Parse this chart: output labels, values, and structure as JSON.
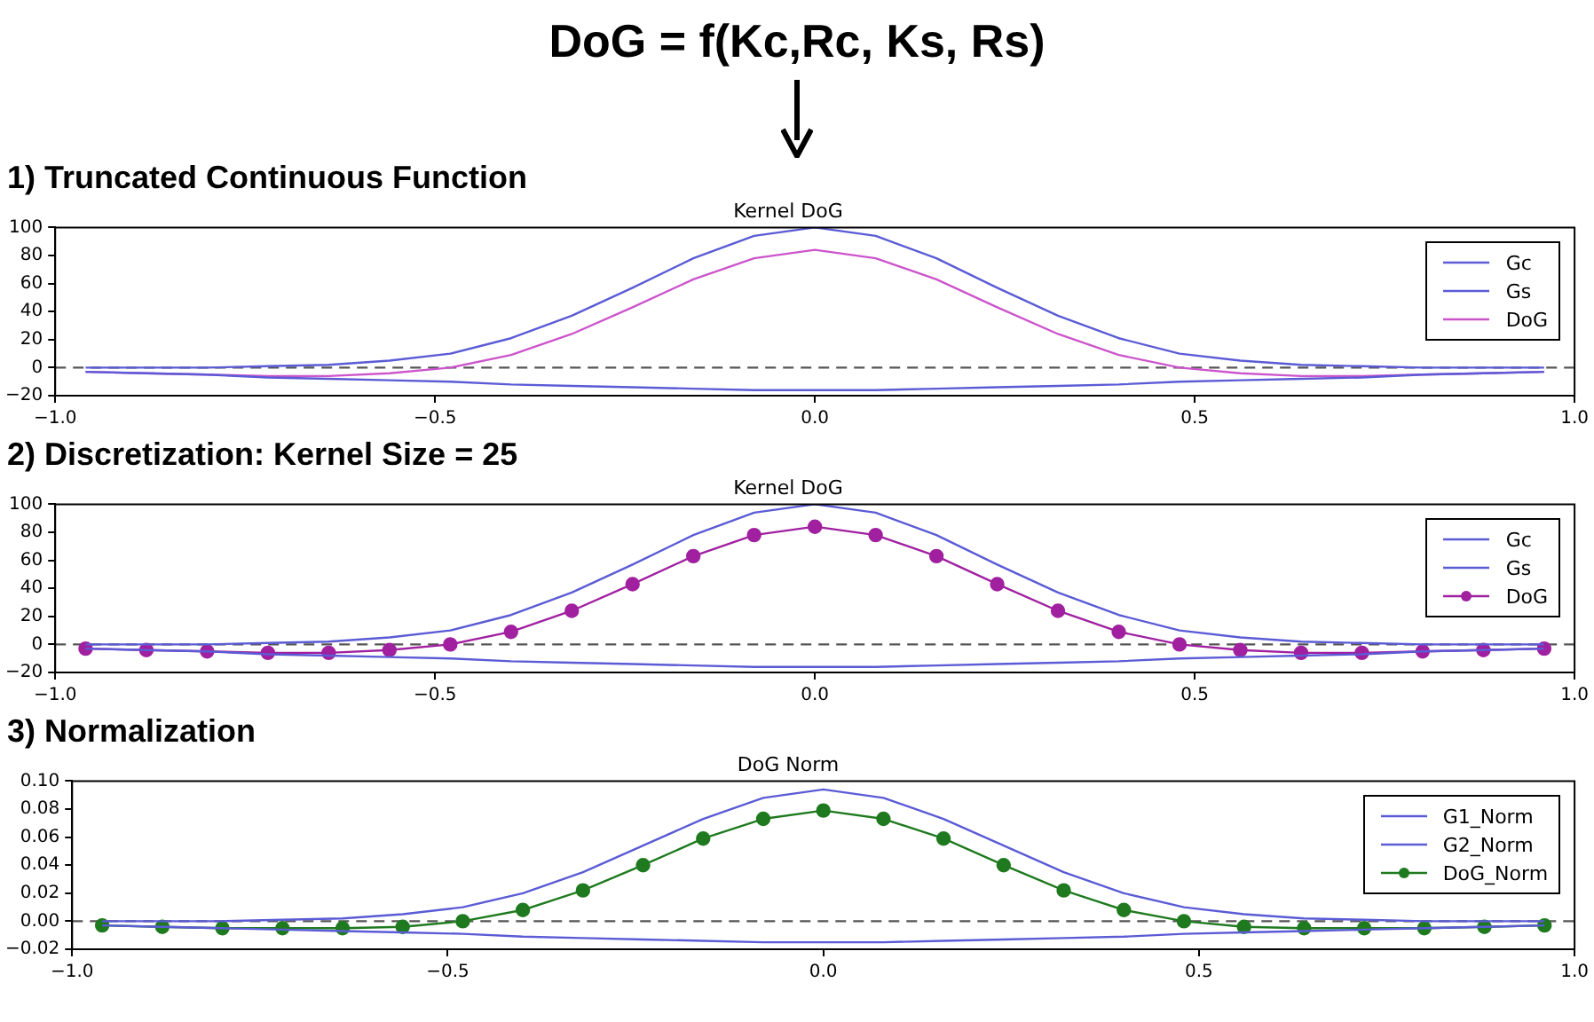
{
  "chart_data": [
    {
      "type": "line",
      "title": "1) Truncated Continuous Function",
      "subtitle": "Kernel DoG",
      "annotations": [
        "DoG = f(Kc,Rc, Ks, Rs)"
      ],
      "x": [
        -0.96,
        -0.88,
        -0.8,
        -0.72,
        -0.64,
        -0.56,
        -0.48,
        -0.4,
        -0.32,
        -0.24,
        -0.16,
        -0.08,
        0,
        0.08,
        0.16,
        0.24,
        0.32,
        0.4,
        0.48,
        0.56,
        0.64,
        0.72,
        0.8,
        0.88,
        0.96
      ],
      "xlim": [
        -1,
        1
      ],
      "xticks": [
        {
          "value": -1,
          "label": "−1.0"
        },
        {
          "value": -0.5,
          "label": "−0.5"
        },
        {
          "value": 0,
          "label": "0.0"
        },
        {
          "value": 0.5,
          "label": "0.5"
        },
        {
          "value": 1,
          "label": "1.0"
        }
      ],
      "ylim": [
        -20,
        100
      ],
      "yticks": [
        {
          "value": -20,
          "label": "−20"
        },
        0,
        20,
        40,
        60,
        80,
        100
      ],
      "legend": "top right",
      "grid": false,
      "marker": "none",
      "ref_lines": [
        {
          "axis": "y",
          "value": 0,
          "color": "#555555",
          "line_style": "dashed"
        }
      ],
      "series": [
        {
          "name": "Gc",
          "color": "#5b5bd6",
          "values": [
            0,
            0,
            0,
            1,
            2,
            5,
            10,
            21,
            37,
            57,
            78,
            94,
            100,
            94,
            78,
            57,
            37,
            21,
            10,
            5,
            2,
            1,
            0,
            0,
            0
          ]
        },
        {
          "name": "Gs",
          "color": "#5b5bd6",
          "values": [
            -3,
            -4,
            -5,
            -7,
            -8,
            -9,
            -10,
            -12,
            -13,
            -14,
            -15,
            -16,
            -16,
            -16,
            -15,
            -14,
            -13,
            -12,
            -10,
            -9,
            -8,
            -7,
            -5,
            -4,
            -3
          ]
        },
        {
          "name": "DoG",
          "color": "#cc55cc",
          "values": [
            -3,
            -4,
            -5,
            -6,
            -6,
            -4,
            0,
            9,
            24,
            43,
            63,
            78,
            84,
            78,
            63,
            43,
            24,
            9,
            0,
            -4,
            -6,
            -6,
            -5,
            -4,
            -3
          ]
        }
      ]
    },
    {
      "type": "line",
      "title": "2) Discretization: Kernel Size = 25",
      "subtitle": "Kernel DoG",
      "x": [
        -0.96,
        -0.88,
        -0.8,
        -0.72,
        -0.64,
        -0.56,
        -0.48,
        -0.4,
        -0.32,
        -0.24,
        -0.16,
        -0.08,
        0,
        0.08,
        0.16,
        0.24,
        0.32,
        0.4,
        0.48,
        0.56,
        0.64,
        0.72,
        0.8,
        0.88,
        0.96
      ],
      "xlim": [
        -1,
        1
      ],
      "xticks": [
        {
          "value": -1,
          "label": "−1.0"
        },
        {
          "value": -0.5,
          "label": "−0.5"
        },
        {
          "value": 0,
          "label": "0.0"
        },
        {
          "value": 0.5,
          "label": "0.5"
        },
        {
          "value": 1,
          "label": "1.0"
        }
      ],
      "ylim": [
        -20,
        100
      ],
      "yticks": [
        {
          "value": -20,
          "label": "−20"
        },
        0,
        20,
        40,
        60,
        80,
        100
      ],
      "legend": "top right",
      "grid": false,
      "ref_lines": [
        {
          "axis": "y",
          "value": 0,
          "color": "#555555",
          "line_style": "dashed"
        }
      ],
      "series": [
        {
          "name": "Gc",
          "color": "#5b5bd6",
          "values": [
            0,
            0,
            0,
            1,
            2,
            5,
            10,
            21,
            37,
            57,
            78,
            94,
            100,
            94,
            78,
            57,
            37,
            21,
            10,
            5,
            2,
            1,
            0,
            0,
            0
          ]
        },
        {
          "name": "Gs",
          "color": "#5b5bd6",
          "values": [
            -3,
            -4,
            -5,
            -7,
            -8,
            -9,
            -10,
            -12,
            -13,
            -14,
            -15,
            -16,
            -16,
            -16,
            -15,
            -14,
            -13,
            -12,
            -10,
            -9,
            -8,
            -7,
            -5,
            -4,
            -3
          ]
        },
        {
          "name": "DoG",
          "color": "#a020a0",
          "marker": "circle",
          "values": [
            -3,
            -4,
            -5,
            -6,
            -6,
            -4,
            0,
            9,
            24,
            43,
            63,
            78,
            84,
            78,
            63,
            43,
            24,
            9,
            0,
            -4,
            -6,
            -6,
            -5,
            -4,
            -3
          ]
        }
      ]
    },
    {
      "type": "line",
      "title": "3) Normalization",
      "subtitle": "DoG Norm",
      "x": [
        -0.96,
        -0.88,
        -0.8,
        -0.72,
        -0.64,
        -0.56,
        -0.48,
        -0.4,
        -0.32,
        -0.24,
        -0.16,
        -0.08,
        0,
        0.08,
        0.16,
        0.24,
        0.32,
        0.4,
        0.48,
        0.56,
        0.64,
        0.72,
        0.8,
        0.88,
        0.96
      ],
      "xlim": [
        -1,
        1
      ],
      "xticks": [
        {
          "value": -1,
          "label": "−1.0"
        },
        {
          "value": -0.5,
          "label": "−0.5"
        },
        {
          "value": 0,
          "label": "0.0"
        },
        {
          "value": 0.5,
          "label": "0.5"
        },
        {
          "value": 1,
          "label": "1.0"
        }
      ],
      "ylim": [
        -0.02,
        0.1
      ],
      "yticks": [
        {
          "value": -0.02,
          "label": "−0.02"
        },
        {
          "value": 0,
          "label": "0.00"
        },
        {
          "value": 0.02,
          "label": "0.02"
        },
        {
          "value": 0.04,
          "label": "0.04"
        },
        {
          "value": 0.06,
          "label": "0.06"
        },
        {
          "value": 0.08,
          "label": "0.08"
        },
        {
          "value": 0.1,
          "label": "0.10"
        }
      ],
      "legend": "top right",
      "grid": false,
      "ref_lines": [
        {
          "axis": "y",
          "value": 0,
          "color": "#555555",
          "line_style": "dashed"
        }
      ],
      "series": [
        {
          "name": "G1_Norm",
          "color": "#5b5bd6",
          "values": [
            0,
            0,
            0,
            0.001,
            0.002,
            0.005,
            0.01,
            0.02,
            0.035,
            0.054,
            0.073,
            0.088,
            0.094,
            0.088,
            0.073,
            0.054,
            0.035,
            0.02,
            0.01,
            0.005,
            0.002,
            0.001,
            0,
            0,
            0
          ]
        },
        {
          "name": "G2_Norm",
          "color": "#5b5bd6",
          "values": [
            -0.003,
            -0.004,
            -0.005,
            -0.006,
            -0.007,
            -0.008,
            -0.009,
            -0.011,
            -0.012,
            -0.013,
            -0.014,
            -0.015,
            -0.015,
            -0.015,
            -0.014,
            -0.013,
            -0.012,
            -0.011,
            -0.009,
            -0.008,
            -0.007,
            -0.006,
            -0.005,
            -0.004,
            -0.003
          ]
        },
        {
          "name": "DoG_Norm",
          "color": "#1f7a1f",
          "marker": "circle",
          "values": [
            -0.003,
            -0.004,
            -0.005,
            -0.005,
            -0.005,
            -0.004,
            0,
            0.008,
            0.022,
            0.04,
            0.059,
            0.073,
            0.079,
            0.073,
            0.059,
            0.04,
            0.022,
            0.008,
            0,
            -0.004,
            -0.005,
            -0.005,
            -0.005,
            -0.004,
            -0.003
          ]
        }
      ]
    }
  ]
}
